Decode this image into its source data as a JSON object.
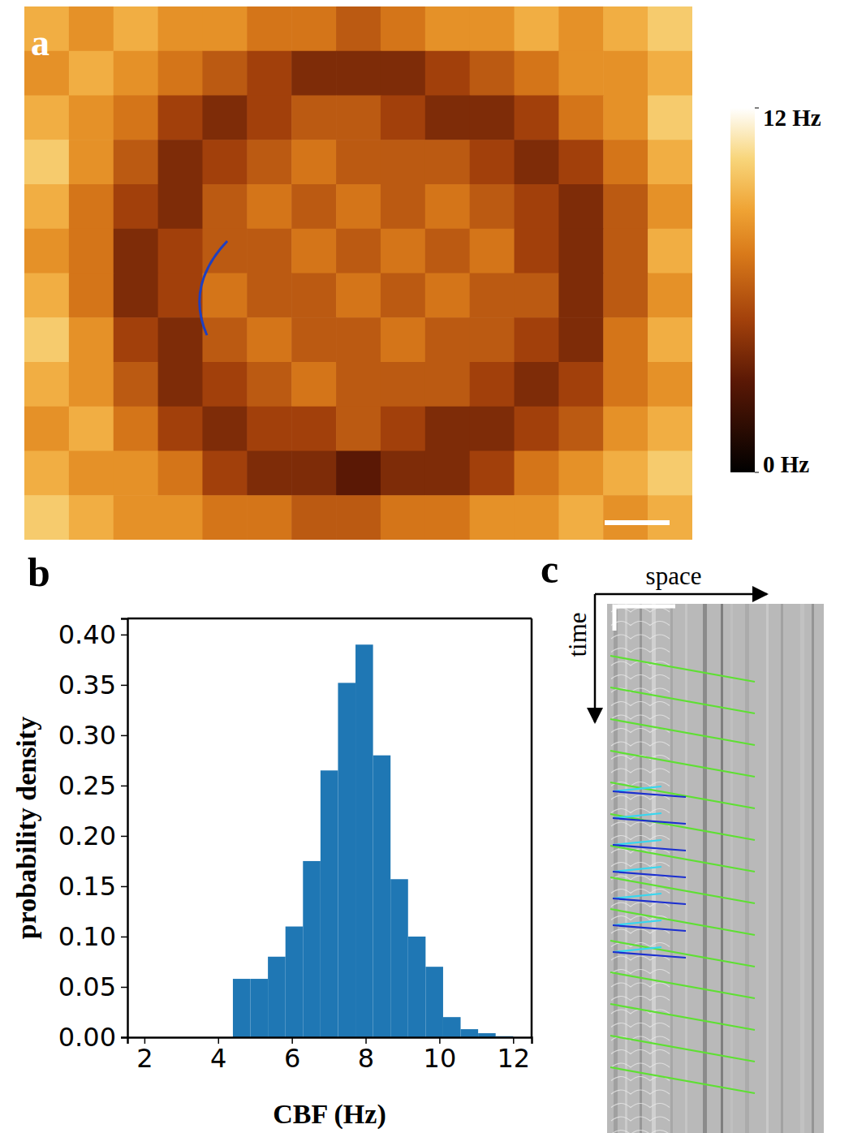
{
  "chart_data": [
    {
      "type": "heatmap",
      "panel_label": "a",
      "cells": [
        [
          9,
          8,
          9,
          8,
          8,
          7,
          7,
          6,
          7,
          8,
          8,
          9,
          8,
          9,
          10
        ],
        [
          8,
          9,
          8,
          7,
          6,
          5,
          4,
          4,
          4,
          5,
          6,
          7,
          8,
          8,
          9
        ],
        [
          9,
          8,
          7,
          5,
          4,
          5,
          6,
          6,
          5,
          4,
          4,
          5,
          7,
          8,
          10
        ],
        [
          10,
          8,
          6,
          4,
          5,
          6,
          7,
          6,
          6,
          6,
          5,
          4,
          5,
          7,
          9
        ],
        [
          9,
          7,
          5,
          4,
          6,
          7,
          6,
          7,
          6,
          7,
          6,
          5,
          4,
          6,
          8
        ],
        [
          8,
          7,
          4,
          5,
          6,
          6,
          7,
          6,
          7,
          6,
          7,
          5,
          4,
          6,
          9
        ],
        [
          9,
          7,
          4,
          5,
          7,
          6,
          6,
          7,
          6,
          7,
          6,
          6,
          4,
          6,
          8
        ],
        [
          10,
          8,
          5,
          4,
          6,
          7,
          6,
          6,
          7,
          6,
          6,
          5,
          4,
          7,
          9
        ],
        [
          9,
          8,
          6,
          4,
          5,
          6,
          7,
          6,
          6,
          6,
          5,
          4,
          5,
          7,
          8
        ],
        [
          8,
          9,
          7,
          5,
          4,
          5,
          5,
          6,
          5,
          4,
          4,
          5,
          6,
          8,
          9
        ],
        [
          9,
          8,
          8,
          7,
          5,
          4,
          4,
          3,
          4,
          4,
          5,
          7,
          8,
          9,
          10
        ],
        [
          10,
          9,
          8,
          8,
          7,
          7,
          6,
          6,
          7,
          7,
          8,
          8,
          9,
          8,
          9
        ]
      ],
      "colorbar_range": [
        0,
        12
      ],
      "colorbar_ticks": [
        {
          "value": 0,
          "label": "0 Hz"
        },
        {
          "value": 12,
          "label": "12 Hz"
        }
      ]
    },
    {
      "type": "histogram",
      "panel_label": "b",
      "x_label": "CBF (Hz)",
      "y_label": "probability density",
      "bins": [
        4.4,
        4.875,
        5.35,
        5.825,
        6.3,
        6.775,
        7.25,
        7.725,
        8.2,
        8.675,
        9.15,
        9.625,
        10.1,
        10.575,
        11.05,
        11.525,
        12.0
      ],
      "counts": [
        0.058,
        0.058,
        0.08,
        0.11,
        0.175,
        0.265,
        0.352,
        0.39,
        0.28,
        0.157,
        0.1,
        0.07,
        0.02,
        0.008,
        0.004,
        0.001
      ],
      "color": "#1f77b4",
      "xlim": [
        1.54,
        12.5
      ],
      "xticks": [
        2,
        4,
        6,
        8,
        10,
        12
      ],
      "ylim": [
        0,
        0.416
      ],
      "yticks": [
        {
          "value": 0,
          "label": "0.00"
        },
        {
          "value": 0.05,
          "label": "0.05"
        },
        {
          "value": 0.1,
          "label": "0.10"
        },
        {
          "value": 0.15,
          "label": "0.15"
        },
        {
          "value": 0.2,
          "label": "0.20"
        },
        {
          "value": 0.25,
          "label": "0.25"
        },
        {
          "value": 0.3,
          "label": "0.30"
        },
        {
          "value": 0.35,
          "label": "0.35"
        },
        {
          "value": 0.4,
          "label": "0.40"
        }
      ]
    },
    {
      "type": "kymograph",
      "panel_label": "c",
      "x_label": "space",
      "y_label": "time"
    }
  ]
}
